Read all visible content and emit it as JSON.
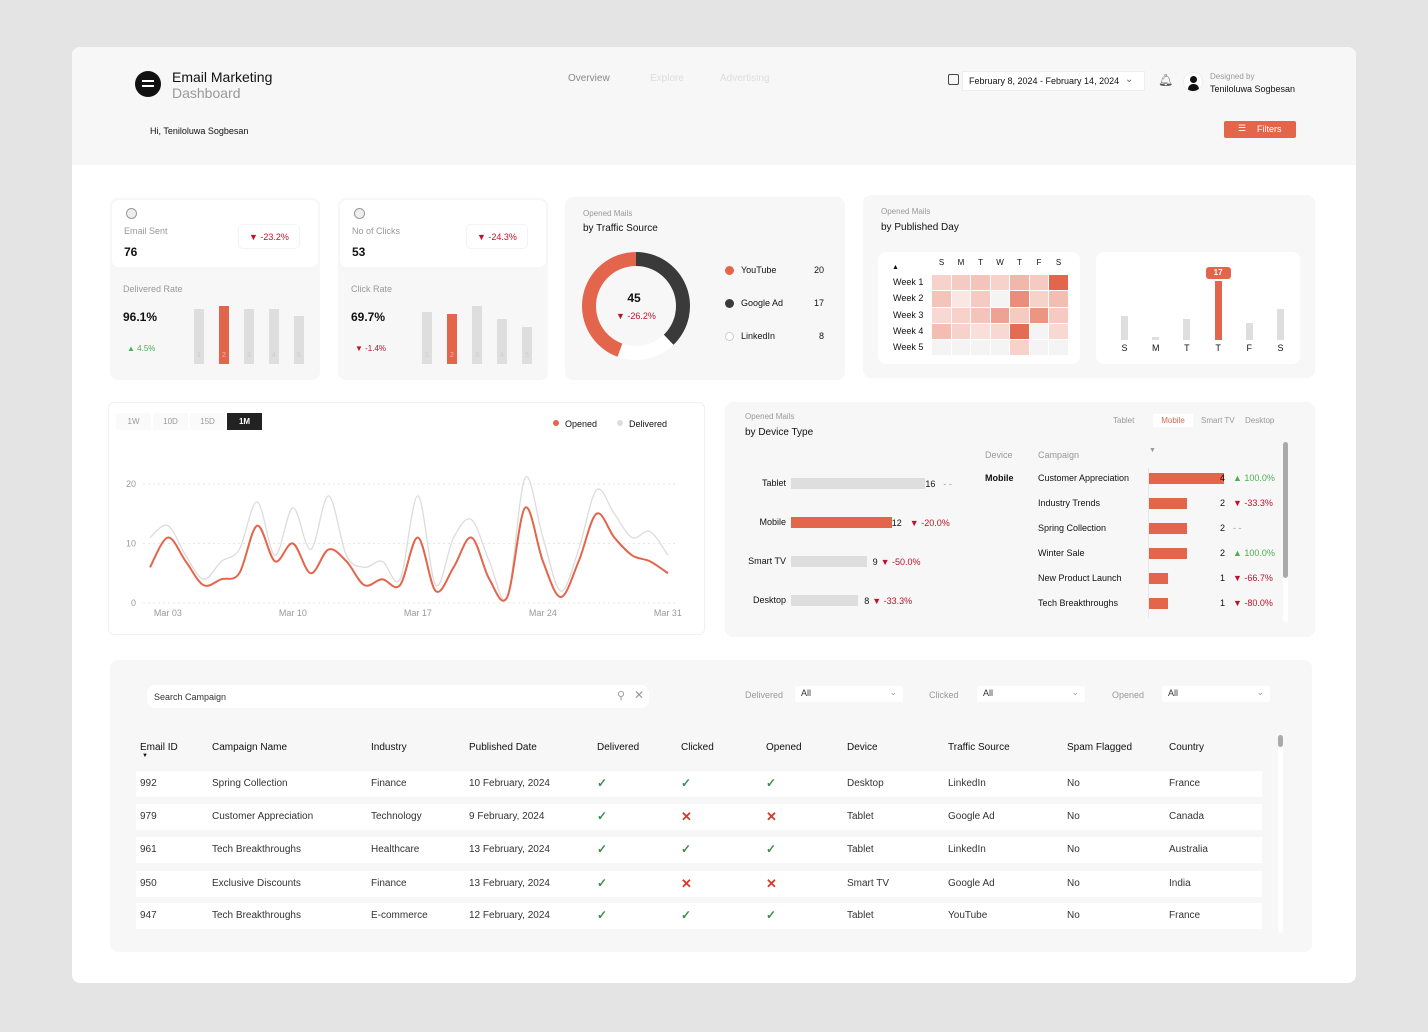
{
  "header": {
    "title": "Email Marketing",
    "subtitle": "Dashboard",
    "greeting": "Hi, Teniloluwa Sogbesan",
    "nav": [
      {
        "label": "Overview",
        "active": true
      },
      {
        "label": "Explore",
        "active": false
      },
      {
        "label": "Advertising",
        "active": false
      }
    ],
    "date_range": "February 8, 2024 - February 14, 2024",
    "designed_by_label": "Designed by",
    "designer": "Teniloluwa Sogbesan",
    "filters_label": "Filters"
  },
  "colors": {
    "accent": "#e3654c",
    "dark": "#3a3a3a",
    "neutral": "#dedede",
    "negative": "#c0102a",
    "positive": "#4caf50"
  },
  "kpis": [
    {
      "label": "Email Sent",
      "value": "76",
      "change": "-23.2%",
      "direction": "down",
      "rate_label": "Delivered Rate",
      "rate": "96.1%",
      "rate_change": "4.5%",
      "rate_direction": "up",
      "bars": {
        "categories": [
          "1",
          "2",
          "3",
          "4",
          "5"
        ],
        "levels": [
          0.95,
          1.0,
          0.95,
          0.94,
          0.83
        ],
        "highlight": 1
      }
    },
    {
      "label": "No of Clicks",
      "value": "53",
      "change": "-24.3%",
      "direction": "down",
      "rate_label": "Click Rate",
      "rate": "69.7%",
      "rate_change": "-1.4%",
      "rate_direction": "down",
      "bars": {
        "categories": [
          "1",
          "2",
          "3",
          "4",
          "5"
        ],
        "levels": [
          0.89,
          0.87,
          1.0,
          0.77,
          0.63
        ],
        "highlight": 1
      }
    }
  ],
  "traffic": {
    "kicker": "Opened Mails",
    "title": "by Traffic Source",
    "total": "45",
    "change": "-26.2%",
    "items": [
      {
        "name": "YouTube",
        "value": 20,
        "color": "#e3654c"
      },
      {
        "name": "Google Ad",
        "value": 17,
        "color": "#3a3a3a"
      },
      {
        "name": "LinkedIn",
        "value": 8,
        "color": "#ffffff"
      }
    ]
  },
  "published_day": {
    "kicker": "Opened Mails",
    "title": "by Published Day",
    "heatmap": {
      "days": [
        "S",
        "M",
        "T",
        "W",
        "T",
        "F",
        "S"
      ],
      "weeks": [
        "Week 1",
        "Week 2",
        "Week 3",
        "Week 4",
        "Week 5"
      ],
      "levels": [
        [
          0.2,
          0.25,
          0.3,
          0.2,
          0.4,
          0.25,
          1
        ],
        [
          0.3,
          0.05,
          0.25,
          0,
          0.7,
          0.2,
          0.35
        ],
        [
          0.15,
          0.2,
          0.3,
          0.55,
          0.25,
          0.65,
          0.25
        ],
        [
          0.35,
          0.2,
          0.1,
          0.15,
          0.95,
          0,
          0.15
        ],
        [
          0,
          0,
          0,
          0,
          0.2,
          0,
          0
        ]
      ]
    },
    "bars": {
      "categories": [
        "S",
        "M",
        "T",
        "T",
        "F",
        "S"
      ],
      "values": [
        7,
        1,
        6,
        17,
        5,
        9
      ],
      "highlight": 3,
      "highlight_label": "17"
    }
  },
  "chart_data": {
    "type": "line",
    "ranges": [
      "1W",
      "10D",
      "15D",
      "1M"
    ],
    "active_range": "1M",
    "x": [
      "Mar 02",
      "Mar 03",
      "Mar 04",
      "Mar 05",
      "Mar 06",
      "Mar 07",
      "Mar 08",
      "Mar 09",
      "Mar 10",
      "Mar 11",
      "Mar 12",
      "Mar 13",
      "Mar 14",
      "Mar 15",
      "Mar 16",
      "Mar 17",
      "Mar 18",
      "Mar 19",
      "Mar 20",
      "Mar 21",
      "Mar 22",
      "Mar 23",
      "Mar 24",
      "Mar 25",
      "Mar 26",
      "Mar 27",
      "Mar 28",
      "Mar 29",
      "Mar 30",
      "Mar 31"
    ],
    "xticks": [
      "Mar 03",
      "Mar 10",
      "Mar 17",
      "Mar 24",
      "Mar 31"
    ],
    "yticks": [
      "0",
      "10",
      "20"
    ],
    "ylim": [
      0,
      23
    ],
    "grid": true,
    "legend": "top-right",
    "series": [
      {
        "name": "Opened",
        "color": "#e3654c",
        "values": [
          6,
          11,
          7,
          3,
          4,
          5,
          13,
          7,
          10,
          5,
          9,
          7,
          3,
          4,
          3,
          11,
          2,
          6,
          11,
          4,
          1,
          16,
          7,
          1,
          7,
          15,
          11,
          8,
          7,
          5
        ]
      },
      {
        "name": "Delivered",
        "color": "#dcdcdc",
        "values": [
          11,
          13,
          8,
          4,
          7,
          9,
          17,
          8,
          16,
          9,
          18,
          8,
          6,
          7,
          4,
          18,
          3,
          11,
          14,
          7,
          1,
          21,
          11,
          2,
          9,
          19,
          15,
          11,
          12,
          8
        ]
      }
    ]
  },
  "device": {
    "kicker": "Opened Mails",
    "title": "by Device Type",
    "tabs": [
      "Tablet",
      "Mobile",
      "Smart TV",
      "Desktop"
    ],
    "active_tab": "Mobile",
    "bars": [
      {
        "name": "Tablet",
        "value": 16,
        "change": "- -",
        "dir": "flat",
        "highlight": false
      },
      {
        "name": "Mobile",
        "value": 12,
        "change": "-20.0%",
        "dir": "down",
        "highlight": true
      },
      {
        "name": "Smart TV",
        "value": 9,
        "change": "-50.0%",
        "dir": "down",
        "highlight": false
      },
      {
        "name": "Desktop",
        "value": 8,
        "change": "-33.3%",
        "dir": "down",
        "highlight": false
      }
    ],
    "table": {
      "col_device": "Device",
      "col_campaign": "Campaign",
      "device": "Mobile",
      "rows": [
        {
          "campaign": "Customer Appreciation",
          "value": 4,
          "change": "100.0%",
          "dir": "up"
        },
        {
          "campaign": "Industry Trends",
          "value": 2,
          "change": "-33.3%",
          "dir": "down"
        },
        {
          "campaign": "Spring Collection",
          "value": 2,
          "change": "- -",
          "dir": "flat"
        },
        {
          "campaign": "Winter Sale",
          "value": 2,
          "change": "100.0%",
          "dir": "up"
        },
        {
          "campaign": "New Product Launch",
          "value": 1,
          "change": "-66.7%",
          "dir": "down"
        },
        {
          "campaign": "Tech Breakthroughs",
          "value": 1,
          "change": "-80.0%",
          "dir": "down"
        }
      ]
    }
  },
  "campaigns": {
    "search_placeholder": "Search Campaign",
    "filters": [
      {
        "label": "Delivered",
        "value": "All"
      },
      {
        "label": "Clicked",
        "value": "All"
      },
      {
        "label": "Opened",
        "value": "All"
      }
    ],
    "columns": [
      "Email ID",
      "Campaign Name",
      "Industry",
      "Published Date",
      "Delivered",
      "Clicked",
      "Opened",
      "Device",
      "Traffic Source",
      "Spam Flagged",
      "Country"
    ],
    "rows": [
      [
        "992",
        "Spring Collection",
        "Finance",
        "10 February, 2024",
        true,
        true,
        true,
        "Desktop",
        "LinkedIn",
        "No",
        "France"
      ],
      [
        "979",
        "Customer Appreciation",
        "Technology",
        "9 February, 2024",
        true,
        false,
        false,
        "Tablet",
        "Google Ad",
        "No",
        "Canada"
      ],
      [
        "961",
        "Tech Breakthroughs",
        "Healthcare",
        "13 February, 2024",
        true,
        true,
        true,
        "Tablet",
        "LinkedIn",
        "No",
        "Australia"
      ],
      [
        "950",
        "Exclusive Discounts",
        "Finance",
        "13 February, 2024",
        true,
        false,
        false,
        "Smart TV",
        "Google Ad",
        "No",
        "India"
      ],
      [
        "947",
        "Tech Breakthroughs",
        "E-commerce",
        "12 February, 2024",
        true,
        true,
        true,
        "Tablet",
        "YouTube",
        "No",
        "France"
      ]
    ]
  }
}
